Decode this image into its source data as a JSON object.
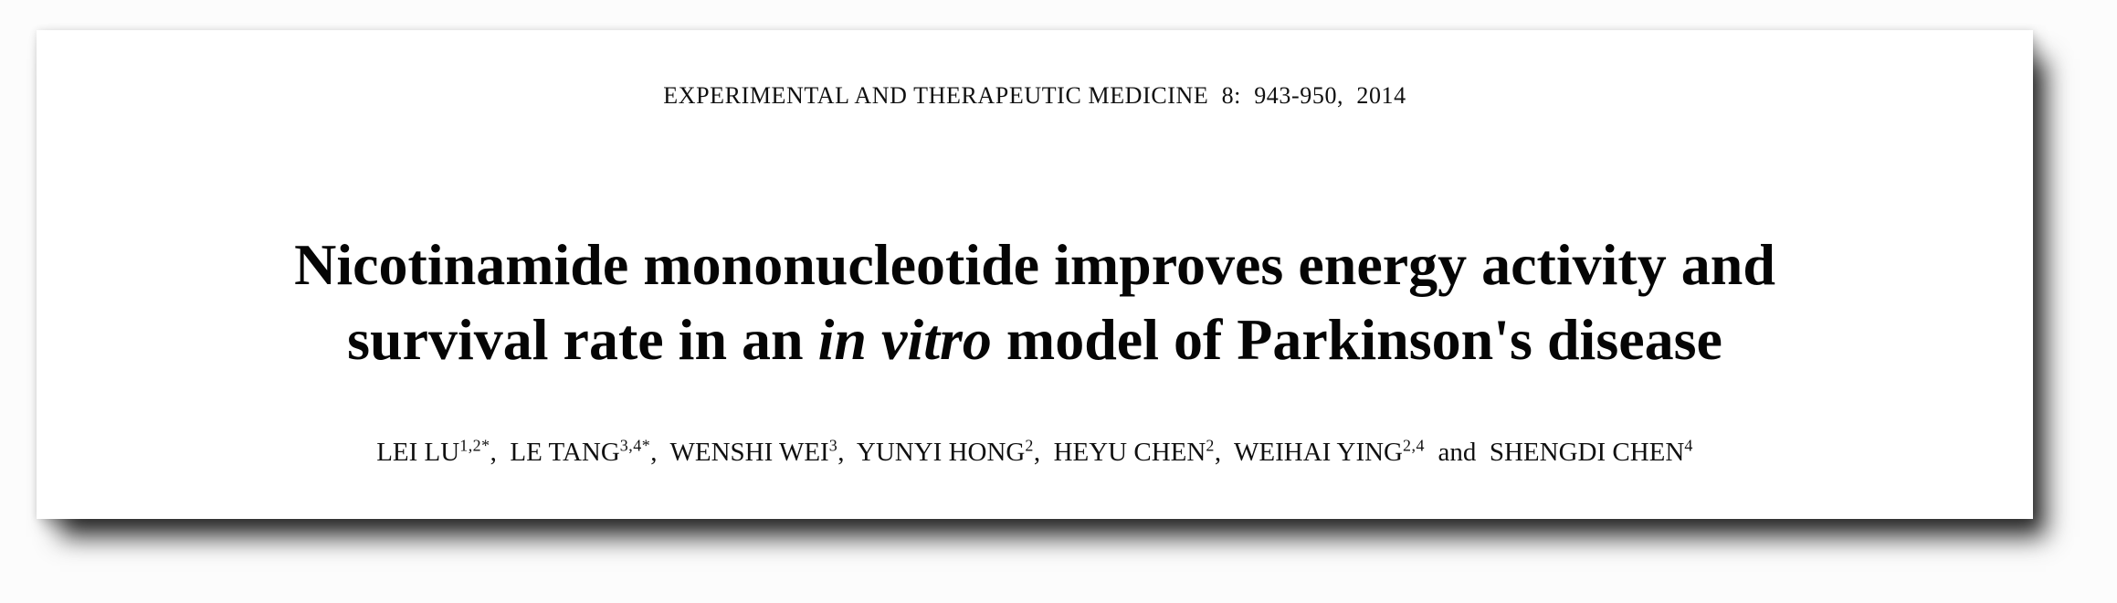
{
  "page": {
    "journal_line": "EXPERIMENTAL AND THERAPEUTIC MEDICINE  8:  943-950,  2014",
    "title": {
      "line1": "Nicotinamide mononucleotide improves energy activity and",
      "line2_pre": "survival rate in an ",
      "line2_italic": "in vitro",
      "line2_post": " model of Parkinson's disease"
    },
    "authors": [
      {
        "name": "LEI LU",
        "sup": "1,2*",
        "sep": ",  "
      },
      {
        "name": "LE TANG",
        "sup": "3,4*",
        "sep": ",  "
      },
      {
        "name": "WENSHI WEI",
        "sup": "3",
        "sep": ",  "
      },
      {
        "name": "YUNYI HONG",
        "sup": "2",
        "sep": ",  "
      },
      {
        "name": "HEYU CHEN",
        "sup": "2",
        "sep": ",  "
      },
      {
        "name": "WEIHAI YING",
        "sup": "2,4",
        "sep": "  and  "
      },
      {
        "name": "SHENGDI CHEN",
        "sup": "4",
        "sep": ""
      }
    ],
    "colors": {
      "paper": "#ffffff",
      "background": "#fcfcfc",
      "text": "#0b0b0b",
      "shadow": "#000000"
    }
  }
}
